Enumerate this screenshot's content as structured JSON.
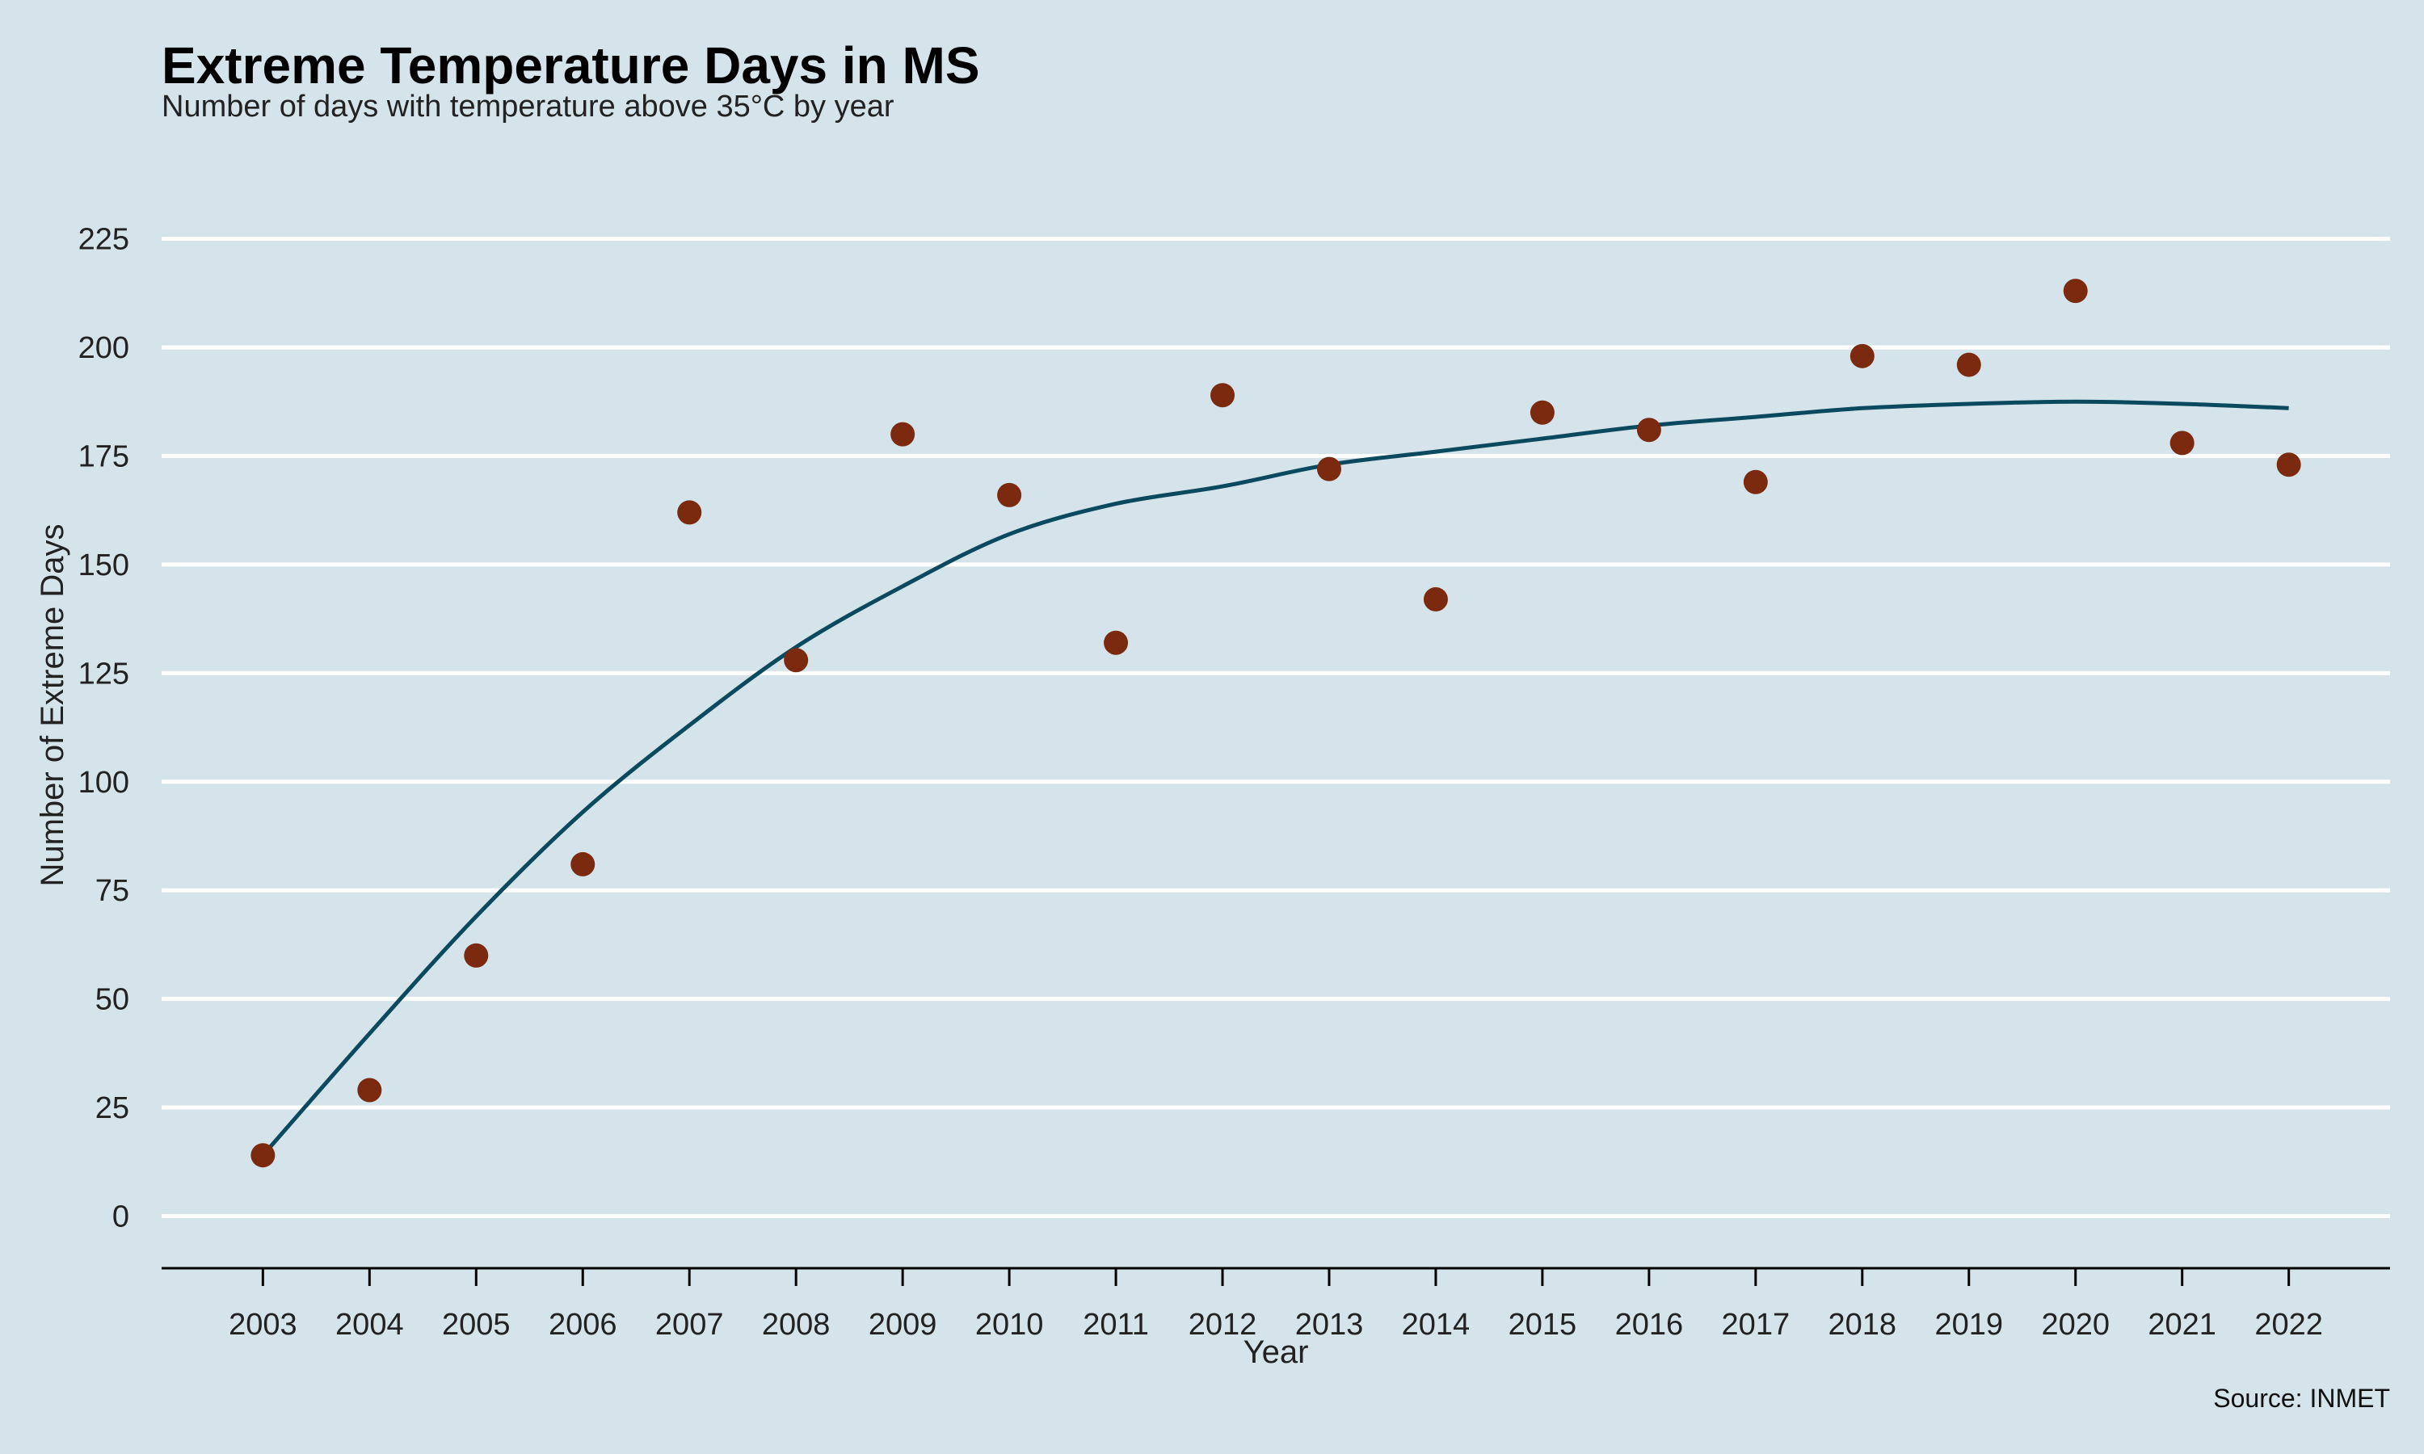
{
  "chart_data": {
    "type": "scatter",
    "title": "Extreme Temperature Days in MS",
    "subtitle": "Number of days with temperature above 35°C by year",
    "xlabel": "Year",
    "ylabel": "Number of Extreme Days",
    "caption": "Source: INMET",
    "x": [
      2003,
      2004,
      2005,
      2006,
      2007,
      2008,
      2009,
      2010,
      2011,
      2012,
      2013,
      2014,
      2015,
      2016,
      2017,
      2018,
      2019,
      2020,
      2021,
      2022
    ],
    "y": [
      14,
      29,
      60,
      81,
      162,
      128,
      180,
      166,
      132,
      189,
      172,
      142,
      185,
      181,
      169,
      198,
      196,
      213,
      178,
      173
    ],
    "trend": {
      "x": [
        2003,
        2004,
        2005,
        2006,
        2007,
        2008,
        2009,
        2010,
        2011,
        2012,
        2013,
        2014,
        2015,
        2016,
        2017,
        2018,
        2019,
        2020,
        2021,
        2022
      ],
      "y": [
        14,
        42,
        69,
        93,
        113,
        131,
        145,
        157,
        164,
        168,
        173,
        176,
        179,
        182,
        184,
        186,
        187,
        187.5,
        187,
        186
      ]
    },
    "ylim": [
      -12,
      232
    ],
    "yticks": [
      0,
      25,
      50,
      75,
      100,
      125,
      150,
      175,
      200,
      225
    ],
    "grid": "horizontal",
    "legend": "none",
    "colors": {
      "background": "#d5e4eb",
      "point": "#7b2a10",
      "line": "#0b4a5e",
      "grid": "#ffffff"
    }
  }
}
